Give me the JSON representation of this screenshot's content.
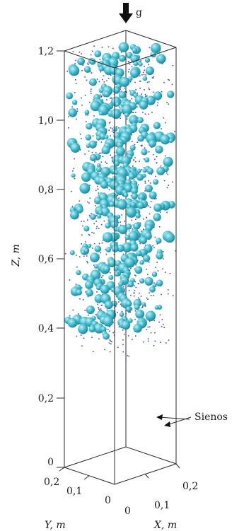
{
  "figure": {
    "gravity_label": "g",
    "z_axis": {
      "title": "Z, m",
      "ticks": [
        {
          "label": "1,2",
          "value": 1.2
        },
        {
          "label": "1,0",
          "value": 1.0
        },
        {
          "label": "0,8",
          "value": 0.8
        },
        {
          "label": "0,6",
          "value": 0.6
        },
        {
          "label": "0,4",
          "value": 0.4
        },
        {
          "label": "0,2",
          "value": 0.2
        },
        {
          "label": "0",
          "value": 0
        }
      ]
    },
    "y_axis": {
      "title": "Y, m",
      "ticks": [
        {
          "label": "0,2",
          "value": 0.2
        },
        {
          "label": "0,1",
          "value": 0.1
        },
        {
          "label": "0",
          "value": 0
        }
      ]
    },
    "x_axis": {
      "title": "X, m",
      "ticks": [
        {
          "label": "0",
          "value": 0
        },
        {
          "label": "0,1",
          "value": 0.1
        },
        {
          "label": "0,2",
          "value": 0.2
        }
      ]
    },
    "walls_label": "Sienos",
    "particle_fill_range_z": [
      0.35,
      1.2
    ],
    "colors": {
      "large_particle": "#3bb6c9",
      "large_particle_highlight": "#bff0f6",
      "small_particle": "#3f4bbf",
      "edges": "#2a2a2a"
    }
  }
}
